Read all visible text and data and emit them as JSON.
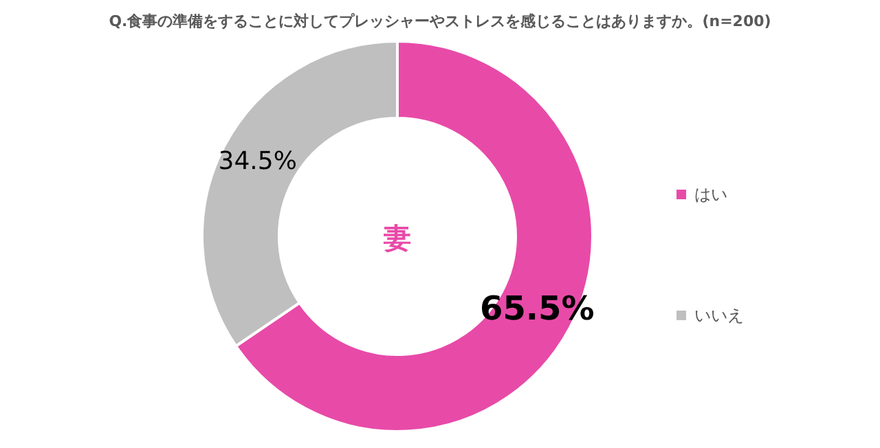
{
  "chart_data": {
    "type": "donut",
    "title": "Q.食事の準備をすることに対してプレッシャーやストレスを感じることはありますか。(n=200)",
    "categories": [
      "はい",
      "いいえ"
    ],
    "values": [
      65.5,
      34.5
    ],
    "colors": [
      "#e84aa8",
      "#bfbfbf"
    ],
    "value_labels": [
      "65.5%",
      "34.5%"
    ],
    "annotations": [
      "妻"
    ],
    "legend": "right"
  }
}
